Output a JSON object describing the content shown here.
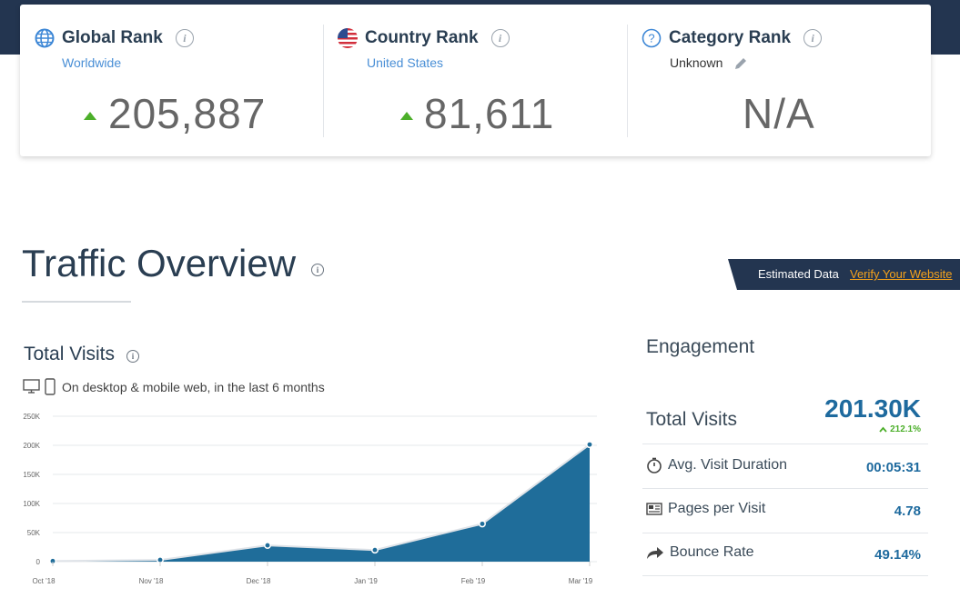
{
  "ranks": {
    "global": {
      "title": "Global Rank",
      "sub": "Worldwide",
      "value": "205,887"
    },
    "country": {
      "title": "Country Rank",
      "sub": "United States",
      "value": "81,611"
    },
    "category": {
      "title": "Category Rank",
      "sub": "Unknown",
      "value": "N/A"
    }
  },
  "traffic": {
    "title": "Traffic Overview",
    "estimated_label": "Estimated Data",
    "verify_link": "Verify Your Website",
    "total_visits_title": "Total Visits",
    "subtitle": "On desktop & mobile web, in the last 6 months"
  },
  "engagement": {
    "title": "Engagement",
    "total_visits_label": "Total Visits",
    "total_visits_value": "201.30K",
    "total_visits_change": "212.1%",
    "rows": [
      {
        "label": "Avg. Visit Duration",
        "value": "00:05:31",
        "icon": "stopwatch-icon"
      },
      {
        "label": "Pages per Visit",
        "value": "4.78",
        "icon": "pages-icon"
      },
      {
        "label": "Bounce Rate",
        "value": "49.14%",
        "icon": "bounce-arrow-icon"
      }
    ]
  },
  "icons": {
    "global": "globe-icon",
    "country": "us-flag-icon",
    "category": "question-icon",
    "info": "info-icon",
    "edit": "pencil-icon"
  },
  "colors": {
    "header_bg": "#233550",
    "accent_blue": "#1e6a9e",
    "link_blue": "#4a8fd6",
    "positive_green": "#4caf2a",
    "verify_orange": "#f4a21c",
    "chart_fill": "#1f6d9a"
  },
  "chart_data": {
    "type": "area",
    "categories": [
      "Oct '18",
      "Nov '18",
      "Dec '18",
      "Jan '19",
      "Feb '19",
      "Mar '19"
    ],
    "values": [
      1000,
      3000,
      28000,
      20000,
      65000,
      201300
    ],
    "yticks": [
      "0",
      "50K",
      "100K",
      "150K",
      "200K",
      "250K"
    ],
    "ylim": [
      0,
      250000
    ],
    "grid": true
  }
}
